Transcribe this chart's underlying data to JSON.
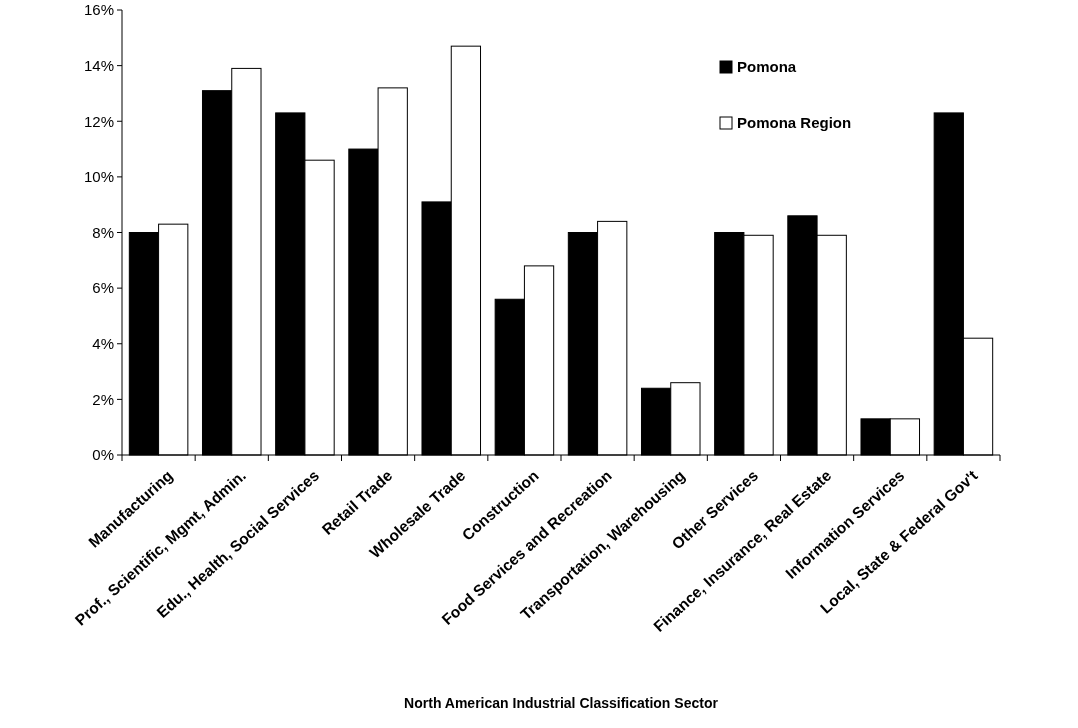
{
  "chart_data": {
    "type": "bar",
    "xlabel": "North American Industrial Classification Sector",
    "categories": [
      "Manufacturing",
      "Prof., Scientific, Mgmt, Admin.",
      "Edu., Health, Social Services",
      "Retail Trade",
      "Wholesale Trade",
      "Construction",
      "Food Services and Recreation",
      "Transportation, Warehousing",
      "Other Services",
      "Finance, Insurance, Real Estate",
      "Information Services",
      "Local, State & Federal Gov't"
    ],
    "series": [
      {
        "name": "Pomona",
        "color": "#000000",
        "values": [
          8.0,
          13.1,
          12.3,
          11.0,
          9.1,
          5.6,
          8.0,
          2.4,
          8.0,
          8.6,
          1.3,
          12.3
        ]
      },
      {
        "name": "Pomona Region",
        "color": "#ffffff",
        "values": [
          8.3,
          13.9,
          10.6,
          13.2,
          14.7,
          6.8,
          8.4,
          2.6,
          7.9,
          7.9,
          1.3,
          4.2
        ]
      }
    ],
    "ylim": [
      0,
      16
    ],
    "yticks": [
      {
        "value": 0,
        "label": "0%"
      },
      {
        "value": 2,
        "label": "2%"
      },
      {
        "value": 4,
        "label": "4%"
      },
      {
        "value": 6,
        "label": "6%"
      },
      {
        "value": 8,
        "label": "8%"
      },
      {
        "value": 10,
        "label": "10%"
      },
      {
        "value": 12,
        "label": "12%"
      },
      {
        "value": 14,
        "label": "14%"
      },
      {
        "value": 16,
        "label": "16%"
      }
    ],
    "grid": false,
    "legend": "top right"
  }
}
